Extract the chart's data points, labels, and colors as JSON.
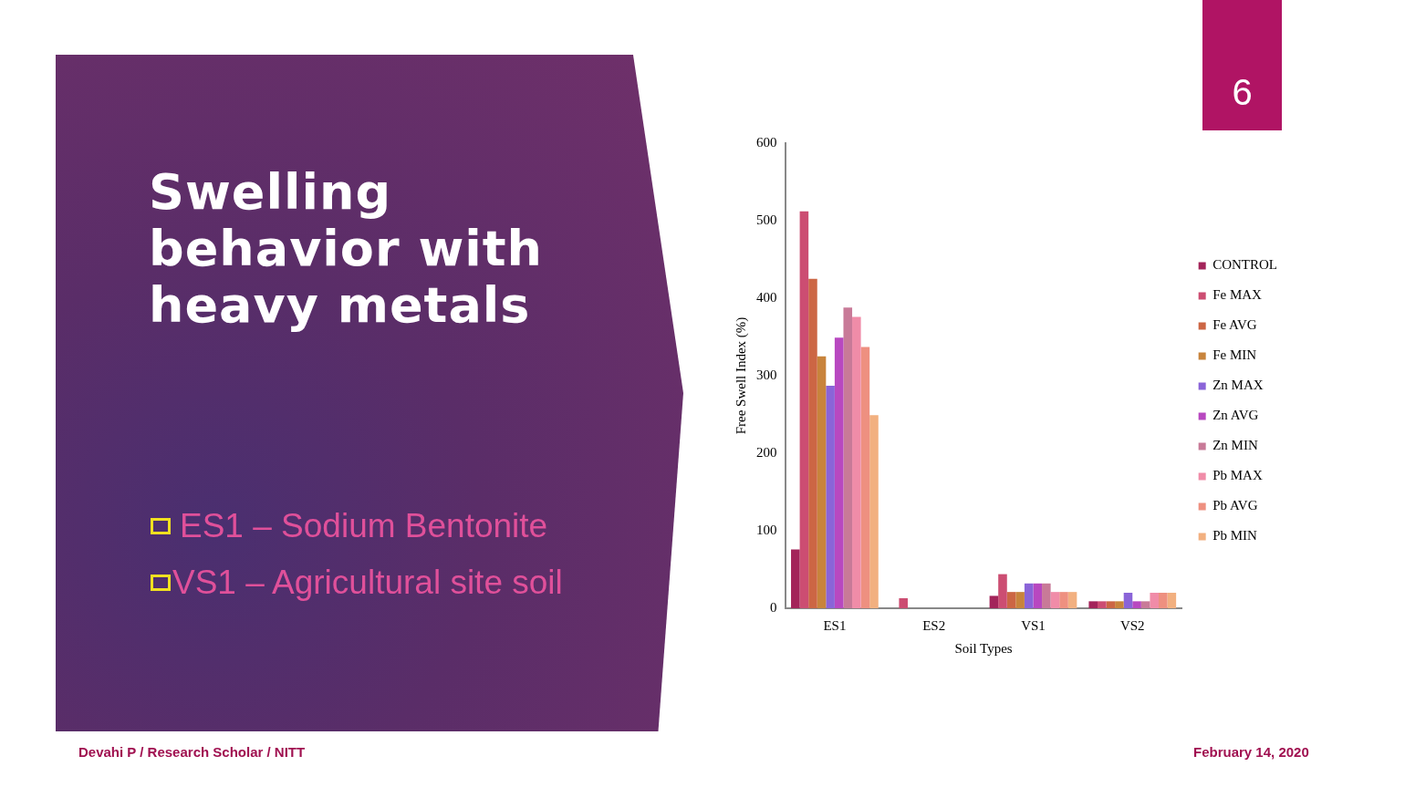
{
  "chart_data": {
    "type": "bar",
    "title": "Swelling behavior with heavy metals",
    "xlabel": "Soil Types",
    "ylabel": "Free Swell Index (%)",
    "categories": [
      "ES1",
      "ES2",
      "VS1",
      "VS2"
    ],
    "series": [
      {
        "name": "CONTROL",
        "color": "#a3245a",
        "values": [
          76,
          0,
          16,
          9
        ]
      },
      {
        "name": "Fe MAX",
        "color": "#cc4d72",
        "values": [
          512,
          13,
          44,
          9
        ]
      },
      {
        "name": "Fe AVG",
        "color": "#cc6644",
        "values": [
          425,
          0,
          21,
          9
        ]
      },
      {
        "name": "Fe MIN",
        "color": "#c8843c",
        "values": [
          325,
          0,
          21,
          9
        ]
      },
      {
        "name": "Zn MAX",
        "color": "#8a64d8",
        "values": [
          287,
          0,
          32,
          20
        ]
      },
      {
        "name": "Zn AVG",
        "color": "#b848c0",
        "values": [
          349,
          0,
          32,
          9
        ]
      },
      {
        "name": "Zn MIN",
        "color": "#c87a98",
        "values": [
          388,
          0,
          32,
          9
        ]
      },
      {
        "name": "Pb MAX",
        "color": "#f08ca8",
        "values": [
          376,
          0,
          21,
          20
        ]
      },
      {
        "name": "Pb AVG",
        "color": "#ee9080",
        "values": [
          337,
          0,
          21,
          20
        ]
      },
      {
        "name": "Pb MIN",
        "color": "#f2b080",
        "values": [
          249,
          0,
          21,
          20
        ]
      }
    ],
    "ylim": [
      0,
      600
    ],
    "yticks": [
      0,
      100,
      200,
      300,
      400,
      500,
      600
    ],
    "grid": false,
    "legend": "right",
    "annotations": [
      "ES1 – Sodium Bentonite",
      "VS1 – Agricultural site soil",
      "Devahi P / Research Scholar / NITT",
      "February 14, 2020",
      "6"
    ]
  }
}
